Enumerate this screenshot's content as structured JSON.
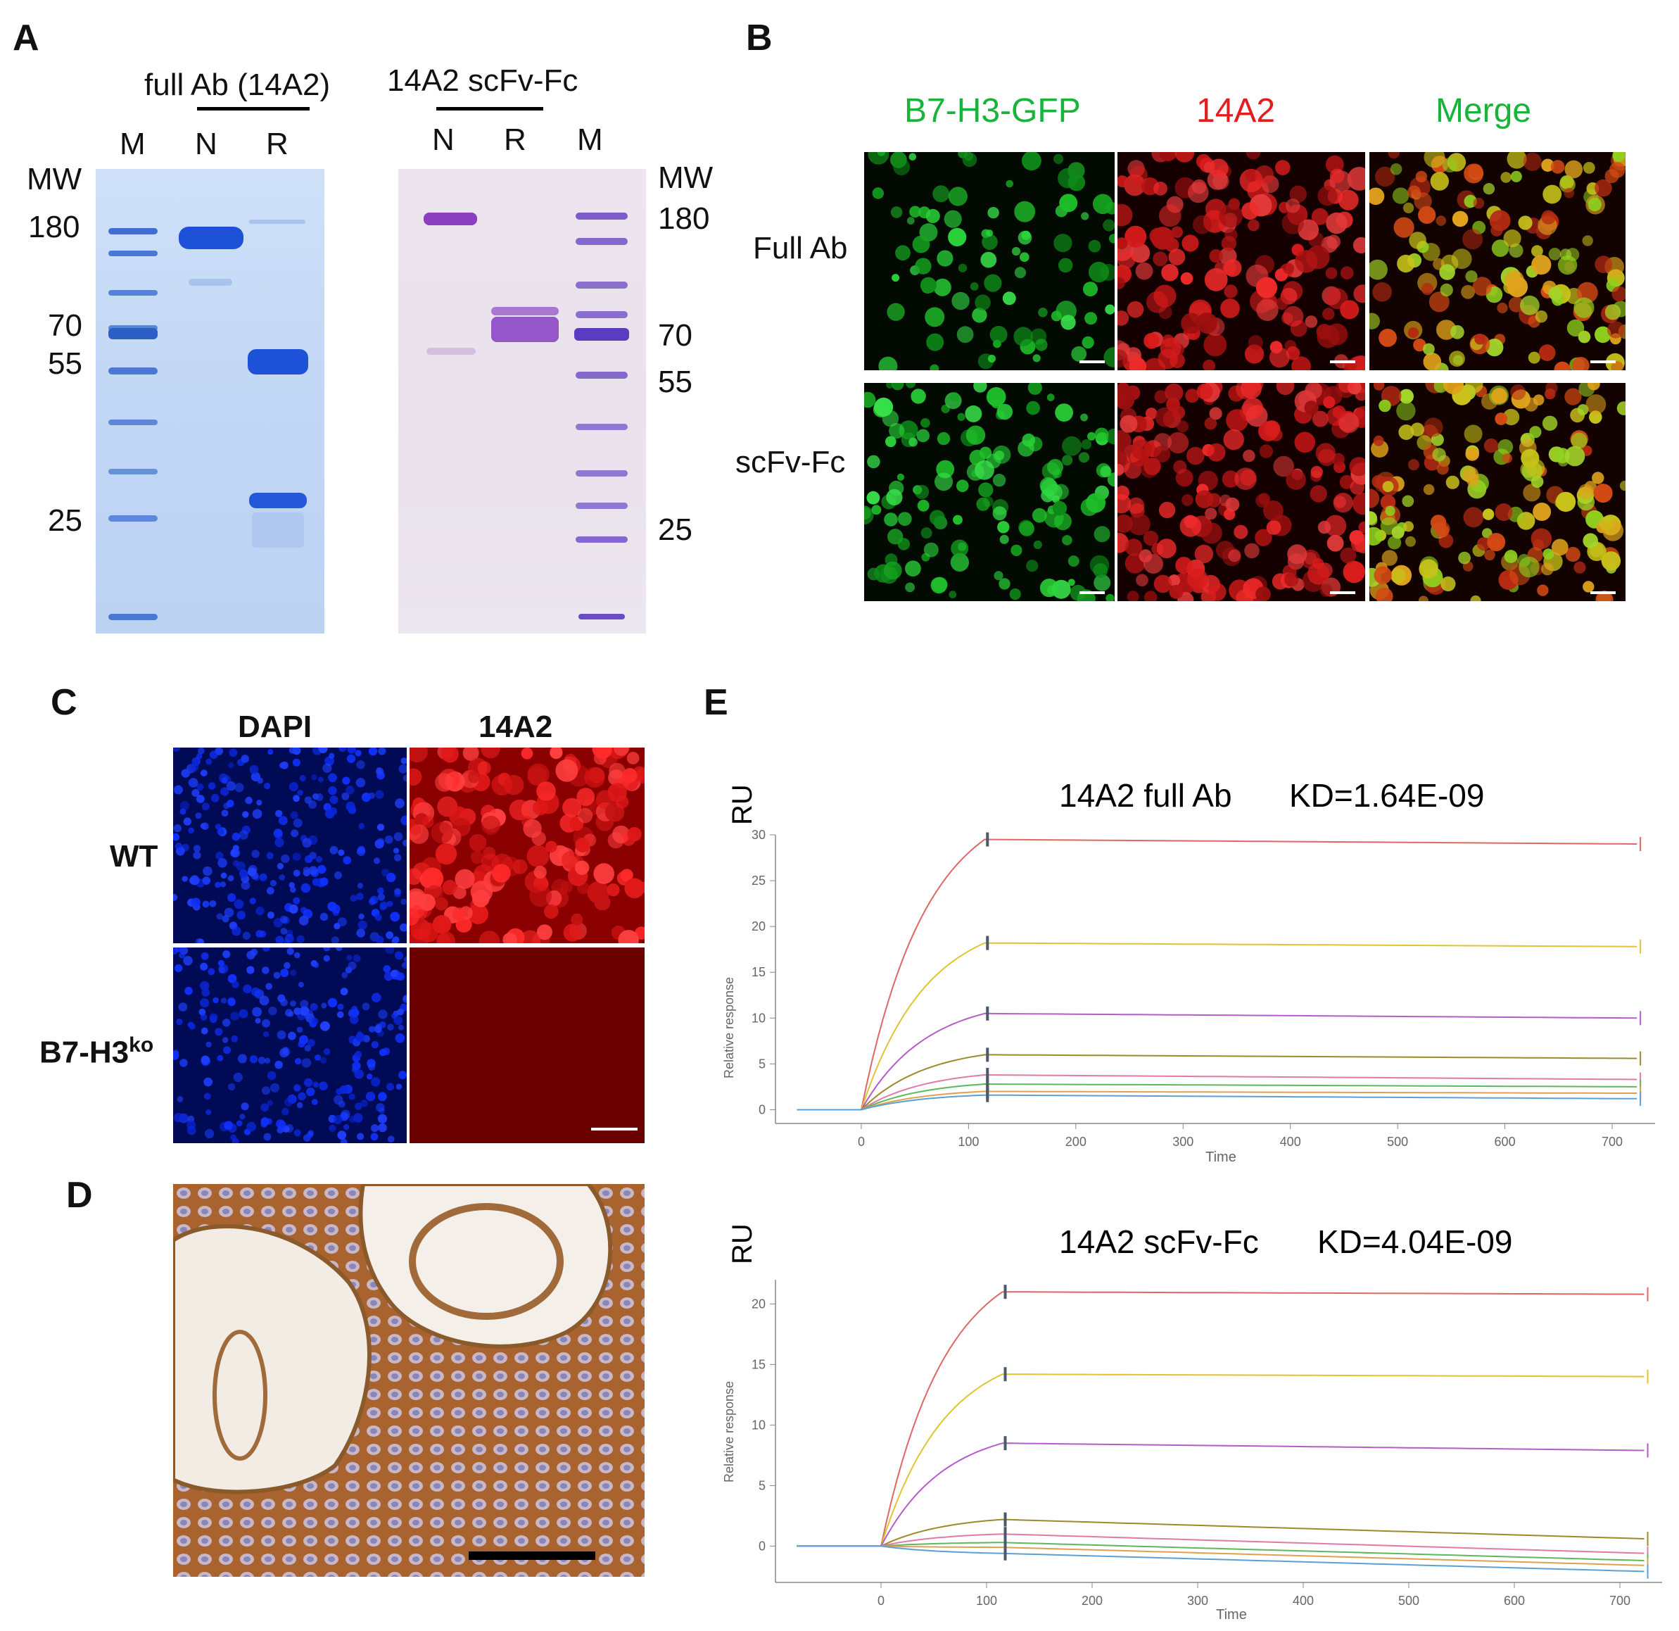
{
  "panels": {
    "A": {
      "letter": "A",
      "gel1": {
        "title": "full Ab (14A2)",
        "lanes": [
          "M",
          "N",
          "R"
        ],
        "mw_header": "MW",
        "mw_markers": [
          "180",
          "70",
          "55",
          "25"
        ]
      },
      "gel2": {
        "title": "14A2 scFv-Fc",
        "lanes": [
          "N",
          "R",
          "M"
        ],
        "mw_header": "MW",
        "mw_markers": [
          "180",
          "70",
          "55",
          "25"
        ]
      }
    },
    "B": {
      "letter": "B",
      "columns": [
        "B7-H3-GFP",
        "14A2",
        "Merge"
      ],
      "rows": [
        "Full Ab",
        "scFv-Fc"
      ],
      "colors": {
        "green": "#18b43a",
        "red": "#e11d1d"
      }
    },
    "C": {
      "letter": "C",
      "columns": [
        "DAPI",
        "14A2"
      ],
      "rows": [
        "WT",
        "B7-H3"
      ],
      "row2_superscript": "ko"
    },
    "D": {
      "letter": "D"
    },
    "E": {
      "letter": "E"
    }
  },
  "chart_data": [
    {
      "type": "line",
      "title": "14A2 full Ab",
      "kd_label": "KD=1.64E-09",
      "unit_label": "RU",
      "xlabel": "Time",
      "ylabel": "Relative response",
      "xlim": [
        -80,
        740
      ],
      "ylim": [
        -1.5,
        30
      ],
      "x_ticks": [
        0,
        100,
        200,
        300,
        400,
        500,
        600,
        700
      ],
      "y_ticks": [
        0,
        5,
        10,
        15,
        20,
        25,
        30
      ],
      "association_end": 115,
      "series": [
        {
          "name": "c1",
          "color": "#e06666",
          "plateau": 29.5,
          "end": 29.0
        },
        {
          "name": "c2",
          "color": "#e0c430",
          "plateau": 18.2,
          "end": 17.8
        },
        {
          "name": "c3",
          "color": "#b45cc8",
          "plateau": 10.5,
          "end": 10.0
        },
        {
          "name": "c4",
          "color": "#9a8a2a",
          "plateau": 6.0,
          "end": 5.6
        },
        {
          "name": "c5",
          "color": "#e07aa8",
          "plateau": 3.8,
          "end": 3.3
        },
        {
          "name": "c6",
          "color": "#5cb85c",
          "plateau": 2.8,
          "end": 2.5
        },
        {
          "name": "c7",
          "color": "#e0a050",
          "plateau": 2.0,
          "end": 1.8
        },
        {
          "name": "c8",
          "color": "#5aa0d8",
          "plateau": 1.6,
          "end": 1.2
        }
      ]
    },
    {
      "type": "line",
      "title": "14A2 scFv-Fc",
      "kd_label": "KD=4.04E-09",
      "unit_label": "RU",
      "xlabel": "Time",
      "ylabel": "Relative response",
      "xlim": [
        -100,
        740
      ],
      "ylim": [
        -3,
        22
      ],
      "x_ticks": [
        0,
        100,
        200,
        300,
        400,
        500,
        600,
        700
      ],
      "y_ticks": [
        0,
        5,
        10,
        15,
        20
      ],
      "association_end": 115,
      "series": [
        {
          "name": "c1",
          "color": "#e06666",
          "plateau": 21.0,
          "end": 20.8
        },
        {
          "name": "c2",
          "color": "#e0c430",
          "plateau": 14.2,
          "end": 14.0
        },
        {
          "name": "c3",
          "color": "#b45cc8",
          "plateau": 8.5,
          "end": 7.9
        },
        {
          "name": "c4",
          "color": "#9a8a2a",
          "plateau": 2.2,
          "end": 0.6
        },
        {
          "name": "c5",
          "color": "#e07aa8",
          "plateau": 1.0,
          "end": -0.6
        },
        {
          "name": "c6",
          "color": "#5cb85c",
          "plateau": 0.3,
          "end": -1.2
        },
        {
          "name": "c7",
          "color": "#e0a050",
          "plateau": -0.1,
          "end": -1.6
        },
        {
          "name": "c8",
          "color": "#5aa0d8",
          "plateau": -0.6,
          "end": -2.1
        }
      ]
    }
  ]
}
